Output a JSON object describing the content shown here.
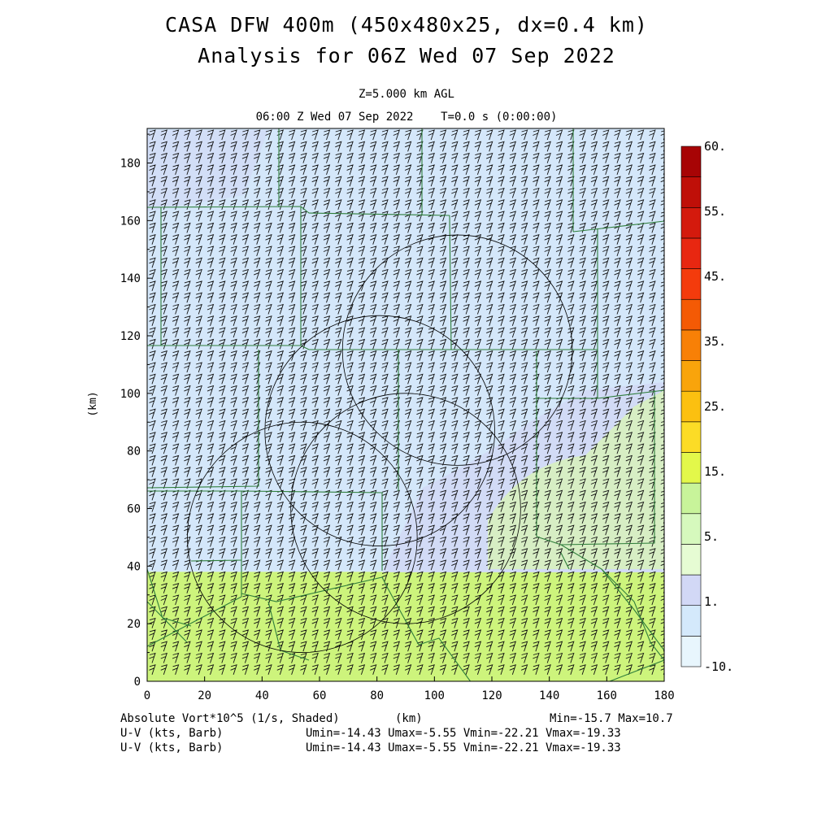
{
  "header": {
    "title_line1": "CASA DFW 400m (450x480x25, dx=0.4 km)",
    "title_line2": "Analysis for 06Z Wed 07 Sep 2022",
    "level": "Z=5.000 km AGL",
    "time": "06:00 Z Wed 07 Sep 2022    T=0.0 s (0:00:00)"
  },
  "axes": {
    "x_ticks": [
      "0",
      "20",
      "40",
      "60",
      "80",
      "100",
      "120",
      "140",
      "160",
      "180"
    ],
    "y_ticks": [
      "0",
      "20",
      "40",
      "60",
      "80",
      "100",
      "120",
      "140",
      "160",
      "180"
    ],
    "x_label": "(km)",
    "y_label": "(km)",
    "x_range": [
      0,
      180
    ],
    "y_range": [
      0,
      192
    ]
  },
  "colorbar": {
    "labels": [
      "60.",
      "55.",
      "45.",
      "35.",
      "25.",
      "15.",
      "5.",
      "1.",
      "-10."
    ],
    "colors": [
      "#e8f6fd",
      "#d4e9fb",
      "#d2d8f6",
      "#e6fcd3",
      "#d6f9bd",
      "#c8f49a",
      "#e3f84a",
      "#fcdc26",
      "#fcc010",
      "#f9a40b",
      "#f88006",
      "#f45a05",
      "#f43b0c",
      "#e82711",
      "#d41a0d",
      "#bf0f08",
      "#a70405"
    ]
  },
  "field": {
    "background_upper": "#d4e7fa",
    "background_lower": "#cdf47c",
    "boundary_y_km": 38
  },
  "range_rings": [
    {
      "cx": 108,
      "cy": 115,
      "r": 40
    },
    {
      "cx": 81,
      "cy": 87,
      "r": 40
    },
    {
      "cx": 90,
      "cy": 60,
      "r": 40
    },
    {
      "cx": 54,
      "cy": 50,
      "r": 40
    }
  ],
  "footer": {
    "field_label": "Absolute Vort*10^5 (1/s, Shaded)",
    "x_unit": "(km)",
    "minmax": "Min=-15.7 Max=10.7",
    "wind1_label": "U-V (kts, Barb)",
    "wind1_stats": "Umin=-14.43 Umax=-5.55 Vmin=-22.21 Vmax=-19.33",
    "wind2_label": "U-V (kts, Barb)",
    "wind2_stats": "Umin=-14.43 Umax=-5.55 Vmin=-22.21 Vmax=-19.33"
  }
}
